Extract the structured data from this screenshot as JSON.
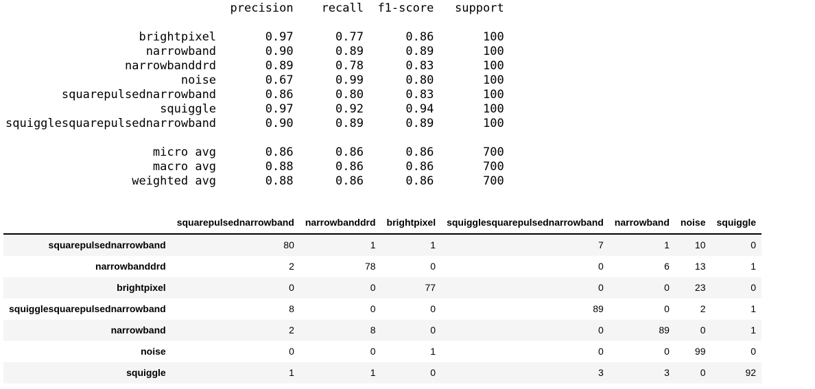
{
  "classification_report": {
    "label_field_width": 30,
    "value_field_width": 9,
    "columns": [
      "precision",
      "recall",
      "f1-score",
      "support"
    ],
    "classes": [
      {
        "label": "brightpixel",
        "precision": "0.97",
        "recall": "0.77",
        "f1_score": "0.86",
        "support": "100"
      },
      {
        "label": "narrowband",
        "precision": "0.90",
        "recall": "0.89",
        "f1_score": "0.89",
        "support": "100"
      },
      {
        "label": "narrowbanddrd",
        "precision": "0.89",
        "recall": "0.78",
        "f1_score": "0.83",
        "support": "100"
      },
      {
        "label": "noise",
        "precision": "0.67",
        "recall": "0.99",
        "f1_score": "0.80",
        "support": "100"
      },
      {
        "label": "squarepulsednarrowband",
        "precision": "0.86",
        "recall": "0.80",
        "f1_score": "0.83",
        "support": "100"
      },
      {
        "label": "squiggle",
        "precision": "0.97",
        "recall": "0.92",
        "f1_score": "0.94",
        "support": "100"
      },
      {
        "label": "squigglesquarepulsednarrowband",
        "precision": "0.90",
        "recall": "0.89",
        "f1_score": "0.89",
        "support": "100"
      }
    ],
    "averages": [
      {
        "label": "micro avg",
        "precision": "0.86",
        "recall": "0.86",
        "f1_score": "0.86",
        "support": "700"
      },
      {
        "label": "macro avg",
        "precision": "0.88",
        "recall": "0.86",
        "f1_score": "0.86",
        "support": "700"
      },
      {
        "label": "weighted avg",
        "precision": "0.88",
        "recall": "0.86",
        "f1_score": "0.86",
        "support": "700"
      }
    ]
  },
  "confusion_matrix": {
    "corner_label": "",
    "columns": [
      "squarepulsednarrowband",
      "narrowbanddrd",
      "brightpixel",
      "squigglesquarepulsednarrowband",
      "narrowband",
      "noise",
      "squiggle"
    ],
    "rows": [
      {
        "label": "squarepulsednarrowband",
        "values": [
          80,
          1,
          1,
          7,
          1,
          10,
          0
        ]
      },
      {
        "label": "narrowbanddrd",
        "values": [
          2,
          78,
          0,
          0,
          6,
          13,
          1
        ]
      },
      {
        "label": "brightpixel",
        "values": [
          0,
          0,
          77,
          0,
          0,
          23,
          0
        ]
      },
      {
        "label": "squigglesquarepulsednarrowband",
        "values": [
          8,
          0,
          0,
          89,
          0,
          2,
          1
        ]
      },
      {
        "label": "narrowband",
        "values": [
          2,
          8,
          0,
          0,
          89,
          0,
          1
        ]
      },
      {
        "label": "noise",
        "values": [
          0,
          0,
          1,
          0,
          0,
          99,
          0
        ]
      },
      {
        "label": "squiggle",
        "values": [
          1,
          1,
          0,
          3,
          3,
          0,
          92
        ]
      }
    ]
  },
  "colors": {
    "background": "#ffffff",
    "row_stripe": "#f5f5f5",
    "header_border": "#000000",
    "text": "#000000"
  }
}
